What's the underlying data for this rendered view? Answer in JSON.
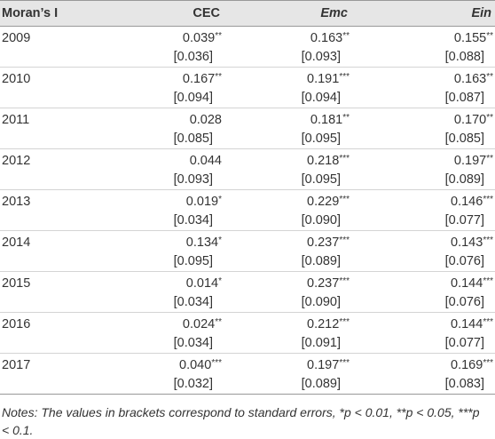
{
  "table": {
    "header": [
      "Moran’s I",
      "CEC",
      "Emc",
      "Ein"
    ],
    "italic_headers": [
      false,
      false,
      true,
      true
    ],
    "rows": [
      {
        "year": "2009",
        "cells": [
          {
            "estimate": "0.039",
            "stars": "**",
            "se": "[0.036]"
          },
          {
            "estimate": "0.163",
            "stars": "**",
            "se": "[0.093]"
          },
          {
            "estimate": "0.155",
            "stars": "**",
            "se": "[0.088]"
          }
        ]
      },
      {
        "year": "2010",
        "cells": [
          {
            "estimate": "0.167",
            "stars": "**",
            "se": "[0.094]"
          },
          {
            "estimate": "0.191",
            "stars": "***",
            "se": "[0.094]"
          },
          {
            "estimate": "0.163",
            "stars": "**",
            "se": "[0.087]"
          }
        ]
      },
      {
        "year": "2011",
        "cells": [
          {
            "estimate": "0.028",
            "se": "[0.085]"
          },
          {
            "estimate": "0.181",
            "stars": "**",
            "se": "[0.095]"
          },
          {
            "estimate": "0.170",
            "stars": "**",
            "se": "[0.085]"
          }
        ]
      },
      {
        "year": "2012",
        "cells": [
          {
            "estimate": "0.044",
            "se": "[0.093]"
          },
          {
            "estimate": "0.218",
            "stars": "***",
            "se": "[0.095]"
          },
          {
            "estimate": "0.197",
            "stars": "**",
            "se": "[0.089]"
          }
        ]
      },
      {
        "year": "2013",
        "cells": [
          {
            "estimate": "0.019",
            "stars": "*",
            "se": "[0.034]"
          },
          {
            "estimate": "0.229",
            "stars": "***",
            "se": "[0.090]"
          },
          {
            "estimate": "0.146",
            "stars": "***",
            "se": "[0.077]"
          }
        ]
      },
      {
        "year": "2014",
        "cells": [
          {
            "estimate": "0.134",
            "stars": "*",
            "se": "[0.095]"
          },
          {
            "estimate": "0.237",
            "stars": "***",
            "se": "[0.089]"
          },
          {
            "estimate": "0.143",
            "stars": "***",
            "se": "[0.076]"
          }
        ]
      },
      {
        "year": "2015",
        "cells": [
          {
            "estimate": "0.014",
            "stars": "*",
            "se": "[0.034]"
          },
          {
            "estimate": "0.237",
            "stars": "***",
            "se": "[0.090]"
          },
          {
            "estimate": "0.144",
            "stars": "***",
            "se": "[0.076]"
          }
        ]
      },
      {
        "year": "2016",
        "cells": [
          {
            "estimate": "0.024",
            "stars": "**",
            "se": "[0.034]"
          },
          {
            "estimate": "0.212",
            "stars": "***",
            "se": "[0.091]"
          },
          {
            "estimate": "0.144",
            "stars": "***",
            "se": "[0.077]"
          }
        ]
      },
      {
        "year": "2017",
        "cells": [
          {
            "estimate": "0.040",
            "stars": "***",
            "se": "[0.032]"
          },
          {
            "estimate": "0.197",
            "stars": "***",
            "se": "[0.089]"
          },
          {
            "estimate": "0.169",
            "stars": "***",
            "se": "[0.083]"
          }
        ]
      }
    ],
    "notes": "Notes: The values in brackets correspond to standard errors, *p < 0.01, **p < 0.05, ***p < 0.1."
  }
}
